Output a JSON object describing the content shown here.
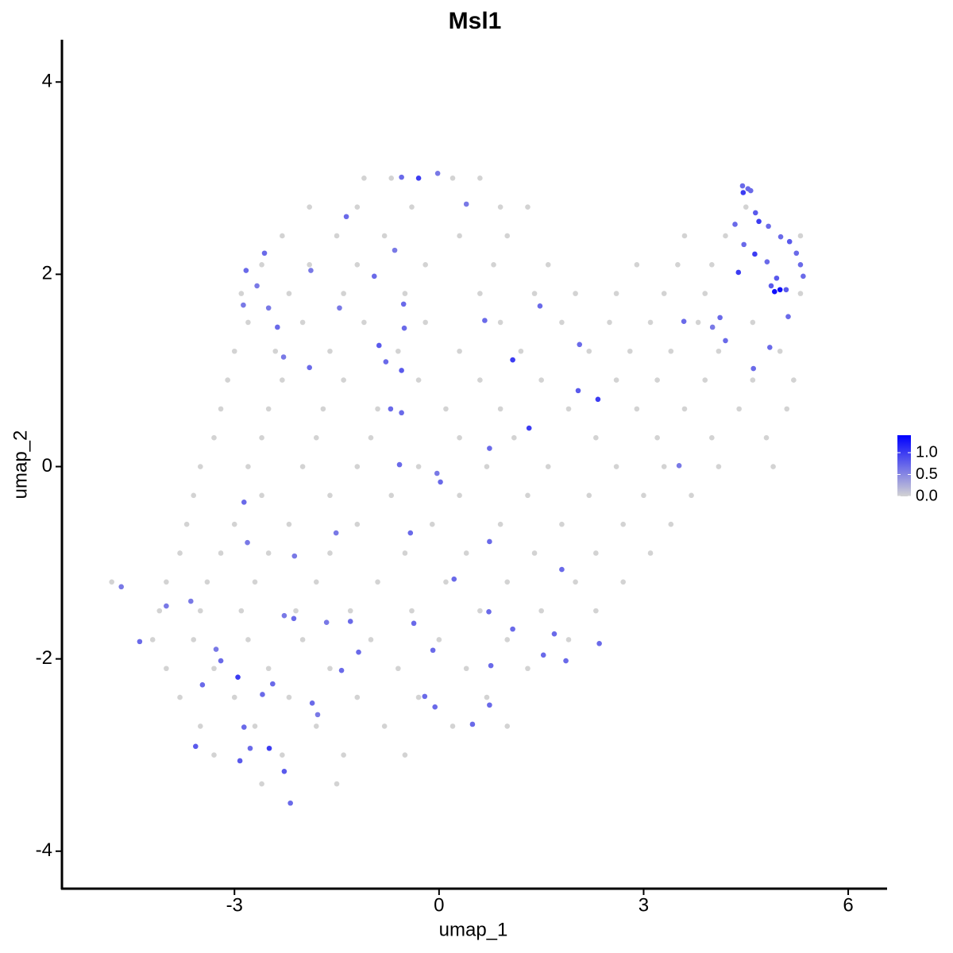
{
  "chart_data": {
    "type": "scatter",
    "title": "Msl1",
    "x_label": "umap_1",
    "y_label": "umap_2",
    "xlim": [
      -5.53,
      6.57
    ],
    "ylim": [
      -4.39,
      4.44
    ],
    "xticks": [
      -3,
      0,
      3,
      6
    ],
    "yticks": [
      -4,
      -2,
      0,
      2,
      4
    ],
    "colorlim": [
      0,
      1.4
    ],
    "colorticks": [
      {
        "value": 0,
        "label": "0.0"
      },
      {
        "value": 0.5,
        "label": "0.5"
      },
      {
        "value": 1,
        "label": "1.0"
      }
    ],
    "color_low": "#d3d3d3",
    "color_high": "#0000ff",
    "x": [
      -1.1,
      -0.7,
      0.2,
      0.6,
      -1.9,
      -1.2,
      -0.4,
      0.9,
      1.3,
      4.5,
      -2.3,
      -1.5,
      -0.8,
      0.3,
      1.0,
      3.6,
      4.2,
      5.3,
      -2.6,
      -1.9,
      -1.2,
      -0.2,
      0.8,
      1.6,
      2.9,
      3.5,
      4.0,
      -2.9,
      -2.2,
      -1.4,
      -0.5,
      0.6,
      1.4,
      2.0,
      2.6,
      3.3,
      3.9,
      5.3,
      -2.8,
      -2.0,
      -1.1,
      -0.2,
      0.9,
      1.8,
      2.5,
      3.1,
      3.8,
      4.6,
      -3.0,
      -2.4,
      -1.6,
      -0.6,
      0.3,
      1.2,
      2.2,
      2.8,
      3.4,
      4.1,
      5.0,
      -3.1,
      -2.3,
      -1.4,
      -0.3,
      0.6,
      1.5,
      2.6,
      3.2,
      3.9,
      4.6,
      5.2,
      -3.2,
      -2.5,
      -1.7,
      -0.9,
      0.1,
      0.9,
      1.9,
      2.9,
      3.6,
      4.4,
      5.1,
      -3.3,
      -2.6,
      -1.8,
      -1.0,
      0.3,
      1.1,
      2.3,
      3.2,
      4.0,
      4.8,
      -3.5,
      -2.8,
      -2.0,
      -1.2,
      -0.3,
      0.7,
      1.6,
      2.6,
      3.3,
      4.1,
      4.9,
      -3.6,
      -2.6,
      -1.6,
      -0.7,
      0.3,
      1.3,
      2.2,
      3.0,
      3.7,
      -3.7,
      -3.0,
      -2.2,
      -1.2,
      -0.1,
      0.9,
      1.8,
      2.7,
      3.4,
      -3.8,
      -3.2,
      -2.5,
      -1.6,
      -0.5,
      0.4,
      1.4,
      2.3,
      3.1,
      -4.8,
      -4.0,
      -3.4,
      -2.7,
      -1.8,
      -0.9,
      0.1,
      1.0,
      2.0,
      2.7,
      -4.1,
      -3.5,
      -2.9,
      -2.1,
      -1.3,
      -0.4,
      0.6,
      1.5,
      2.3,
      -4.2,
      -3.6,
      -2.8,
      -2.0,
      -1.0,
      0.0,
      1.0,
      1.9,
      -4.0,
      -3.3,
      -2.5,
      -1.6,
      -0.6,
      0.4,
      1.3,
      -3.8,
      -3.0,
      -2.2,
      -1.2,
      -0.3,
      0.7,
      -3.5,
      -2.7,
      -1.8,
      -0.8,
      0.2,
      1.0,
      -3.3,
      -2.3,
      -1.4,
      -0.5,
      -2.6,
      -1.5,
      -4.66,
      -4.39,
      -4.0,
      -3.64,
      -3.57,
      -3.47,
      -3.27,
      -3.2,
      -2.95,
      -2.92,
      -2.86,
      -2.86,
      -2.81,
      -2.83,
      -2.87,
      -2.67,
      -2.56,
      -2.5,
      -2.37,
      -2.28,
      -1.9,
      -1.88,
      -2.27,
      -2.13,
      -2.12,
      -2.59,
      -2.44,
      -2.49,
      -2.27,
      -2.18,
      -2.77,
      -1.86,
      -1.78,
      -1.65,
      -1.46,
      -1.51,
      -1.43,
      -1.3,
      -1.18,
      -1.36,
      -0.95,
      -0.88,
      -0.78,
      -0.71,
      -0.65,
      -0.55,
      -0.55,
      -0.52,
      -0.51,
      -0.58,
      -0.42,
      -0.37,
      -0.55,
      -0.3,
      -0.02,
      -0.09,
      -0.03,
      0.02,
      -0.21,
      -0.06,
      0.22,
      0.4,
      0.49,
      0.67,
      0.74,
      0.74,
      0.73,
      0.76,
      0.74,
      1.08,
      1.08,
      1.32,
      1.48,
      1.53,
      1.69,
      1.8,
      1.86,
      2.04,
      2.06,
      2.33,
      2.35,
      3.52,
      3.59,
      4.01,
      4.12,
      4.2,
      4.34,
      4.39,
      4.45,
      4.47,
      4.46,
      4.53,
      4.57,
      4.61,
      4.63,
      4.64,
      4.69,
      4.83,
      4.85,
      4.81,
      4.87,
      4.92,
      5.0,
      5.09,
      5.01,
      5.14,
      5.24,
      5.3,
      5.34,
      5.12,
      4.95
    ],
    "y": [
      3.0,
      3.0,
      3.0,
      3.0,
      2.7,
      2.7,
      2.7,
      2.7,
      2.7,
      2.7,
      2.4,
      2.4,
      2.4,
      2.4,
      2.4,
      2.4,
      2.4,
      2.4,
      2.1,
      2.1,
      2.1,
      2.1,
      2.1,
      2.1,
      2.1,
      2.1,
      2.1,
      1.8,
      1.8,
      1.8,
      1.8,
      1.8,
      1.8,
      1.8,
      1.8,
      1.8,
      1.8,
      1.8,
      1.5,
      1.5,
      1.5,
      1.5,
      1.5,
      1.5,
      1.5,
      1.5,
      1.5,
      1.5,
      1.2,
      1.2,
      1.2,
      1.2,
      1.2,
      1.2,
      1.2,
      1.2,
      1.2,
      1.2,
      1.2,
      0.9,
      0.9,
      0.9,
      0.9,
      0.9,
      0.9,
      0.9,
      0.9,
      0.9,
      0.9,
      0.9,
      0.6,
      0.6,
      0.6,
      0.6,
      0.6,
      0.6,
      0.6,
      0.6,
      0.6,
      0.6,
      0.6,
      0.3,
      0.3,
      0.3,
      0.3,
      0.3,
      0.3,
      0.3,
      0.3,
      0.3,
      0.3,
      0.0,
      0.0,
      0.0,
      0.0,
      0.0,
      0.0,
      0.0,
      0.0,
      0.0,
      0.0,
      0.0,
      -0.3,
      -0.3,
      -0.3,
      -0.3,
      -0.3,
      -0.3,
      -0.3,
      -0.3,
      -0.3,
      -0.6,
      -0.6,
      -0.6,
      -0.6,
      -0.6,
      -0.6,
      -0.6,
      -0.6,
      -0.6,
      -0.9,
      -0.9,
      -0.9,
      -0.9,
      -0.9,
      -0.9,
      -0.9,
      -0.9,
      -0.9,
      -1.2,
      -1.2,
      -1.2,
      -1.2,
      -1.2,
      -1.2,
      -1.2,
      -1.2,
      -1.2,
      -1.2,
      -1.5,
      -1.5,
      -1.5,
      -1.5,
      -1.5,
      -1.5,
      -1.5,
      -1.5,
      -1.5,
      -1.8,
      -1.8,
      -1.8,
      -1.8,
      -1.8,
      -1.8,
      -1.8,
      -1.8,
      -2.1,
      -2.1,
      -2.1,
      -2.1,
      -2.1,
      -2.1,
      -2.1,
      -2.4,
      -2.4,
      -2.4,
      -2.4,
      -2.4,
      -2.4,
      -2.7,
      -2.7,
      -2.7,
      -2.7,
      -2.7,
      -2.7,
      -3.0,
      -3.0,
      -3.0,
      -3.0,
      -3.3,
      -3.3,
      -1.25,
      -1.82,
      -1.45,
      -1.4,
      -2.91,
      -2.27,
      -1.9,
      -2.02,
      -2.19,
      -3.06,
      -2.71,
      -0.37,
      -0.79,
      2.04,
      1.68,
      1.88,
      2.22,
      1.65,
      1.45,
      1.14,
      1.03,
      2.04,
      -1.55,
      -1.58,
      -0.93,
      -2.37,
      -2.26,
      -2.93,
      -3.17,
      -3.5,
      -2.93,
      -2.46,
      -2.58,
      -1.62,
      1.65,
      -0.69,
      -2.12,
      -1.61,
      -1.93,
      2.6,
      1.98,
      1.26,
      1.09,
      0.6,
      2.25,
      1.0,
      0.56,
      1.69,
      1.44,
      0.02,
      -0.69,
      -1.63,
      3.01,
      3.0,
      3.05,
      -1.91,
      -0.07,
      -0.16,
      -2.39,
      -2.5,
      -1.17,
      2.73,
      -2.68,
      1.52,
      0.19,
      -0.78,
      -1.51,
      -2.07,
      -2.48,
      1.11,
      -1.69,
      0.4,
      1.67,
      -1.96,
      -1.74,
      -1.07,
      -2.02,
      0.79,
      1.27,
      0.7,
      -1.84,
      0.01,
      1.51,
      1.45,
      1.55,
      1.31,
      2.52,
      2.02,
      2.92,
      2.31,
      2.85,
      2.89,
      2.87,
      1.02,
      2.21,
      2.64,
      2.55,
      2.5,
      1.24,
      2.13,
      1.88,
      1.82,
      1.84,
      1.84,
      2.39,
      2.34,
      2.22,
      2.1,
      1.98,
      1.56,
      1.96
    ],
    "values": [
      0,
      0,
      0,
      0,
      0,
      0,
      0,
      0,
      0,
      0,
      0,
      0,
      0,
      0,
      0,
      0,
      0,
      0,
      0,
      0,
      0,
      0,
      0,
      0,
      0,
      0,
      0,
      0,
      0,
      0,
      0,
      0,
      0,
      0,
      0,
      0,
      0,
      0,
      0,
      0,
      0,
      0,
      0,
      0,
      0,
      0,
      0,
      0,
      0,
      0,
      0,
      0,
      0,
      0,
      0,
      0,
      0,
      0,
      0,
      0,
      0,
      0,
      0,
      0,
      0,
      0,
      0,
      0,
      0,
      0,
      0,
      0,
      0,
      0,
      0,
      0,
      0,
      0,
      0,
      0,
      0,
      0,
      0,
      0,
      0,
      0,
      0,
      0,
      0,
      0,
      0,
      0,
      0,
      0,
      0,
      0,
      0,
      0,
      0,
      0,
      0,
      0,
      0,
      0,
      0,
      0,
      0,
      0,
      0,
      0,
      0,
      0,
      0,
      0,
      0,
      0,
      0,
      0,
      0,
      0,
      0,
      0,
      0,
      0,
      0,
      0,
      0,
      0,
      0,
      0,
      0,
      0,
      0,
      0,
      0,
      0,
      0,
      0,
      0,
      0,
      0,
      0,
      0,
      0,
      0,
      0,
      0,
      0,
      0,
      0,
      0,
      0,
      0,
      0,
      0,
      0,
      0,
      0,
      0,
      0,
      0,
      0,
      0,
      0,
      0,
      0,
      0,
      0,
      0,
      0,
      0,
      0,
      0,
      0,
      0,
      0,
      0,
      0,
      0,
      0,
      0,
      0.6,
      0.7,
      0.6,
      0.6,
      0.8,
      0.7,
      0.6,
      0.7,
      1.0,
      0.8,
      0.7,
      0.7,
      0.6,
      0.7,
      0.6,
      0.6,
      0.7,
      0.6,
      0.7,
      0.6,
      0.7,
      0.6,
      0.6,
      0.7,
      0.6,
      0.7,
      0.7,
      1.0,
      0.8,
      0.7,
      0.7,
      0.7,
      0.6,
      0.6,
      0.6,
      0.6,
      0.7,
      0.7,
      0.7,
      0.7,
      0.7,
      0.8,
      0.7,
      0.7,
      0.6,
      0.8,
      0.7,
      0.7,
      0.7,
      0.7,
      0.7,
      0.7,
      0.7,
      1.0,
      0.6,
      0.7,
      0.6,
      0.7,
      0.7,
      0.7,
      0.7,
      0.6,
      0.7,
      0.7,
      0.7,
      0.7,
      0.7,
      0.7,
      0.7,
      1.0,
      0.7,
      1.0,
      0.7,
      0.7,
      0.7,
      0.7,
      0.7,
      0.8,
      0.7,
      1.0,
      0.7,
      0.6,
      0.7,
      0.6,
      0.7,
      0.7,
      0.7,
      1.0,
      0.7,
      0.7,
      1.0,
      0.7,
      0.7,
      0.7,
      1.0,
      0.8,
      1.0,
      0.7,
      0.7,
      0.7,
      0.8,
      1.3,
      1.3,
      0.8,
      0.7,
      0.8,
      0.7,
      0.7,
      0.7,
      0.7,
      0.8
    ]
  }
}
